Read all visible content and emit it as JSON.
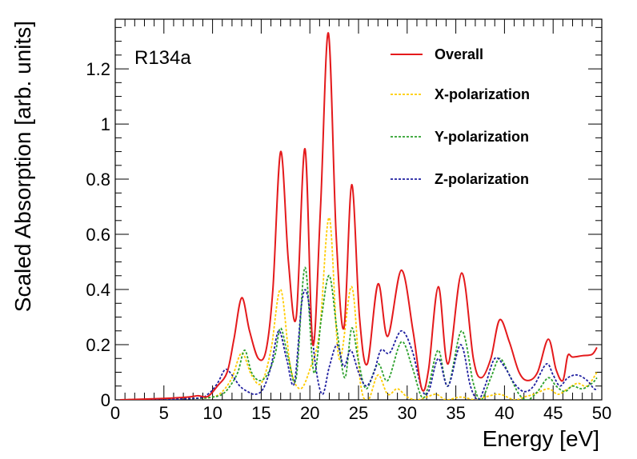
{
  "chart_data": {
    "type": "line",
    "title": "",
    "annotation": "R134a",
    "xlabel": "Energy [eV]",
    "ylabel": "Scaled Absorption [arb. units]",
    "xlim": [
      0,
      50
    ],
    "ylim": [
      0,
      1.38
    ],
    "xticks": [
      0,
      5,
      10,
      15,
      20,
      25,
      30,
      35,
      40,
      45,
      50
    ],
    "xtick_labels": [
      "0",
      "5",
      "10",
      "15",
      "20",
      "25",
      "30",
      "35",
      "40",
      "45",
      "50"
    ],
    "yticks": [
      0,
      0.2,
      0.4,
      0.6,
      0.8,
      1.0,
      1.2
    ],
    "ytick_labels": [
      "0",
      "0.2",
      "0.4",
      "0.6",
      "0.8",
      "1",
      "1.2"
    ],
    "legend_position": "top-right",
    "series": [
      {
        "name": "Overall",
        "color": "#e41a1c",
        "style": "solid",
        "x": [
          0.5,
          5,
          7.5,
          8.5,
          9.5,
          10.5,
          11.5,
          12.2,
          13,
          13.8,
          14.7,
          15.5,
          16.2,
          17,
          17.8,
          18.6,
          19.5,
          20.3,
          21.1,
          21.9,
          22.7,
          23.5,
          24.3,
          25.1,
          25.9,
          27,
          28,
          29.4,
          30.6,
          31.5,
          32.2,
          33.2,
          34.2,
          35.6,
          36.8,
          37.6,
          38.6,
          39.5,
          40.5,
          41.5,
          42.4,
          43.4,
          44.5,
          45.3,
          46,
          46.5,
          47,
          48,
          49,
          49.5
        ],
        "y": [
          0.0,
          0.005,
          0.01,
          0.015,
          0.012,
          0.05,
          0.1,
          0.22,
          0.37,
          0.25,
          0.15,
          0.18,
          0.4,
          0.9,
          0.5,
          0.3,
          0.91,
          0.2,
          0.7,
          1.33,
          0.6,
          0.26,
          0.78,
          0.3,
          0.13,
          0.42,
          0.23,
          0.47,
          0.25,
          0.04,
          0.11,
          0.41,
          0.13,
          0.46,
          0.15,
          0.08,
          0.15,
          0.29,
          0.21,
          0.1,
          0.07,
          0.1,
          0.22,
          0.11,
          0.07,
          0.16,
          0.155,
          0.16,
          0.165,
          0.19
        ]
      },
      {
        "name": "X-polarization",
        "color": "#ffcc00",
        "style": "dotted",
        "x": [
          0.5,
          8,
          10,
          11,
          12,
          13,
          14,
          15,
          16,
          17,
          18,
          19,
          20,
          21,
          22,
          23,
          24.3,
          25.2,
          26,
          27,
          28,
          29,
          30,
          31,
          32,
          33,
          34,
          35.5,
          37,
          38,
          39.5,
          41,
          42,
          43,
          44.5,
          45.5,
          46.5,
          47.5,
          48.5,
          49.5
        ],
        "y": [
          0.0,
          0.005,
          0.01,
          0.03,
          0.08,
          0.17,
          0.09,
          0.06,
          0.18,
          0.4,
          0.12,
          0.04,
          0.11,
          0.25,
          0.66,
          0.15,
          0.41,
          0.06,
          0.0,
          0.09,
          0.02,
          0.04,
          0.01,
          0.0,
          0.01,
          0.02,
          0.0,
          0.01,
          0.0,
          0.01,
          0.02,
          0.0,
          0.01,
          0.02,
          0.04,
          0.02,
          0.04,
          0.06,
          0.05,
          0.1
        ]
      },
      {
        "name": "Y-polarization",
        "color": "#2ca02c",
        "style": "dotted",
        "x": [
          0.5,
          8,
          10,
          11,
          11.8,
          12.6,
          13.3,
          14,
          14.8,
          15.6,
          16.4,
          17,
          17.8,
          18.6,
          19.5,
          20.4,
          21.2,
          22,
          22.8,
          23.6,
          24.3,
          25,
          25.8,
          27,
          28,
          29.4,
          30.5,
          31.5,
          32.2,
          33.2,
          34.2,
          35.6,
          36.8,
          37.6,
          38.6,
          39.5,
          40.5,
          41.5,
          42.4,
          43.4,
          44.5,
          45.3,
          46.2,
          47,
          48,
          49,
          49.5
        ],
        "y": [
          0.0,
          0.005,
          0.01,
          0.02,
          0.05,
          0.1,
          0.18,
          0.1,
          0.07,
          0.09,
          0.16,
          0.26,
          0.15,
          0.08,
          0.48,
          0.1,
          0.3,
          0.45,
          0.25,
          0.08,
          0.26,
          0.14,
          0.04,
          0.13,
          0.07,
          0.21,
          0.12,
          0.01,
          0.05,
          0.18,
          0.05,
          0.25,
          0.06,
          0.0,
          0.08,
          0.15,
          0.09,
          0.02,
          0.0,
          0.03,
          0.08,
          0.05,
          0.03,
          0.05,
          0.04,
          0.06,
          0.08
        ]
      },
      {
        "name": "Z-polarization",
        "color": "#1f1fa0",
        "style": "dotted",
        "x": [
          0.5,
          8,
          9.5,
          10.5,
          11.3,
          12,
          12.8,
          13.6,
          14.4,
          15.2,
          16,
          16.8,
          17.6,
          18.4,
          19.2,
          19.8,
          20.6,
          21.3,
          22,
          22.8,
          23.5,
          24.2,
          25,
          25.8,
          26.6,
          27.3,
          28.2,
          29.4,
          30.5,
          31.5,
          32.2,
          33.2,
          34.2,
          35.5,
          36.5,
          37.3,
          38,
          39,
          40,
          41,
          42,
          43,
          44.3,
          45,
          45.7,
          46.5,
          47.5,
          48.5,
          49.2,
          49.6
        ],
        "y": [
          0.0,
          0.005,
          0.02,
          0.06,
          0.11,
          0.09,
          0.05,
          0.03,
          0.02,
          0.04,
          0.12,
          0.25,
          0.15,
          0.06,
          0.36,
          0.37,
          0.12,
          0.02,
          0.12,
          0.2,
          0.12,
          0.18,
          0.1,
          0.05,
          0.1,
          0.18,
          0.17,
          0.25,
          0.18,
          0.04,
          0.03,
          0.15,
          0.05,
          0.2,
          0.05,
          0.0,
          0.05,
          0.15,
          0.12,
          0.06,
          0.03,
          0.05,
          0.13,
          0.09,
          0.05,
          0.08,
          0.09,
          0.07,
          0.04,
          0.04
        ]
      }
    ]
  }
}
